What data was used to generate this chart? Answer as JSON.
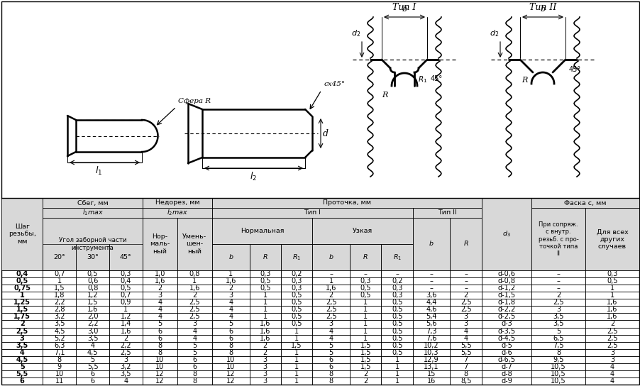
{
  "rows": [
    [
      "0,4",
      "0,7",
      "0,5",
      "0,3",
      "1,0",
      "0,8",
      "1",
      "0,3",
      "0,2",
      "–",
      "–",
      "–",
      "–",
      "–",
      "d-0,6",
      "–",
      "0,3"
    ],
    [
      "0,5",
      "1",
      "0,6",
      "0,4",
      "1,6",
      "1",
      "1,6",
      "0,5",
      "0,3",
      "1",
      "0,3",
      "0,2",
      "–",
      "–",
      "d-0,8",
      "–",
      "0,5"
    ],
    [
      "0,75",
      "1,5",
      "0,8",
      "0,5",
      "2",
      "1,6",
      "2",
      "0,5",
      "0,3",
      "1,6",
      "0,5",
      "0,3",
      "–",
      "–",
      "d-1,2",
      "–",
      "1"
    ],
    [
      "1",
      "1,8",
      "1,2",
      "0,7",
      "3",
      "2",
      "3",
      "1",
      "0,5",
      "2",
      "0,5",
      "0,3",
      "3,6",
      "2",
      "d-1,5",
      "2",
      "1"
    ],
    [
      "1,25",
      "2,2",
      "1,5",
      "0,9",
      "4",
      "2,5",
      "4",
      "1",
      "0,5",
      "2,5",
      "1",
      "0,5",
      "4,4",
      "2,5",
      "d-1,8",
      "2,5",
      "1,6"
    ],
    [
      "1,5",
      "2,8",
      "1,6",
      "1",
      "4",
      "2,5",
      "4",
      "1",
      "0,5",
      "2,5",
      "1",
      "0,5",
      "4,6",
      "2,5",
      "d-2,2",
      "3",
      "1,6"
    ],
    [
      "1,75",
      "3,2",
      "2,0",
      "1,2",
      "4",
      "2,5",
      "4",
      "1",
      "0,5",
      "2,5",
      "1",
      "0,5",
      "5,4",
      "3",
      "d-2,5",
      "3,5",
      "1,6"
    ],
    [
      "2",
      "3,5",
      "2,2",
      "1,4",
      "5",
      "3",
      "5",
      "1,6",
      "0,5",
      "3",
      "1",
      "0,5",
      "5,6",
      "3",
      "d-3",
      "3,5",
      "2"
    ],
    [
      "2,5",
      "4,5",
      "3,0",
      "1,6",
      "6",
      "4",
      "6",
      "1,6",
      "1",
      "4",
      "1",
      "0,5",
      "7,3",
      "4",
      "d-3,5",
      "5",
      "2,5"
    ],
    [
      "3",
      "5,2",
      "3,5",
      "2",
      "6",
      "4",
      "6",
      "1,6",
      "1",
      "4",
      "1",
      "0,5",
      "7,6",
      "4",
      "d-4,5",
      "6,5",
      "2,5"
    ],
    [
      "3,5",
      "6,3",
      "4",
      "2,2",
      "8",
      "5",
      "8",
      "2",
      "1,5",
      "5",
      "1,5",
      "0,5",
      "10,2",
      "5,5",
      "d-5",
      "7,5",
      "2,5"
    ],
    [
      "4",
      "7,1",
      "4,5",
      "2,5",
      "8",
      "5",
      "8",
      "2",
      "1",
      "5",
      "1,5",
      "0,5",
      "10,3",
      "5,5",
      "d-6",
      "8",
      "3"
    ],
    [
      "4,5",
      "8",
      "5",
      "3",
      "10",
      "6",
      "10",
      "3",
      "1",
      "6",
      "1,5",
      "1",
      "12,9",
      "7",
      "d-6,5",
      "9,5",
      "3"
    ],
    [
      "5",
      "9",
      "5,5",
      "3,2",
      "10",
      "6",
      "10",
      "3",
      "1",
      "6",
      "1,5",
      "1",
      "13,1",
      "7",
      "d-7",
      "10,5",
      "4"
    ],
    [
      "5,5",
      "10",
      "6",
      "3,5",
      "12",
      "8",
      "12",
      "3",
      "1",
      "8",
      "2",
      "1",
      "15",
      "8",
      "d-8",
      "10,5",
      "4"
    ],
    [
      "6",
      "11",
      "6",
      "4",
      "12",
      "8",
      "12",
      "3",
      "1",
      "8",
      "2",
      "1",
      "16",
      "8,5",
      "d-9",
      "10,5",
      "4"
    ]
  ],
  "bg_white": "#ffffff",
  "bg_gray": "#d8d8d8",
  "border": "#000000"
}
